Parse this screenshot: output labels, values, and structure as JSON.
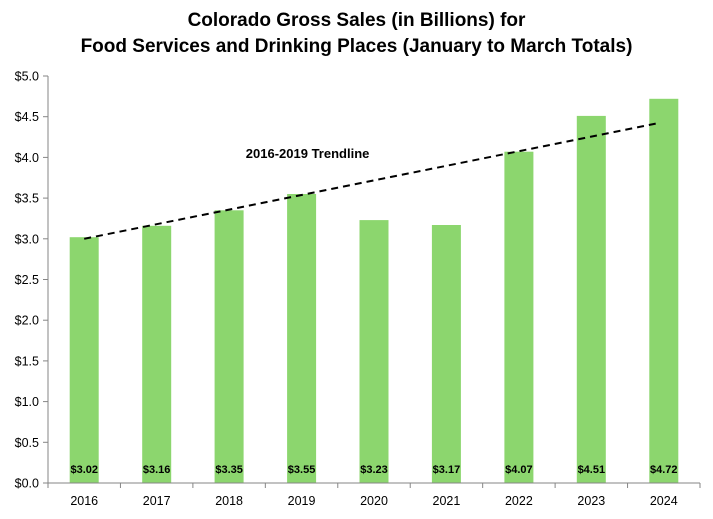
{
  "chart_data": {
    "type": "bar",
    "title": [
      "Colorado Gross Sales (in Billions) for",
      "Food Services and Drinking Places (January to March Totals)"
    ],
    "xlabel": "",
    "ylabel": "",
    "categories": [
      "2016",
      "2017",
      "2018",
      "2019",
      "2020",
      "2021",
      "2022",
      "2023",
      "2024"
    ],
    "values": [
      3.02,
      3.16,
      3.35,
      3.55,
      3.23,
      3.17,
      4.07,
      4.51,
      4.72
    ],
    "data_labels": [
      "$3.02",
      "$3.16",
      "$3.35",
      "$3.55",
      "$3.23",
      "$3.17",
      "$4.07",
      "$4.51",
      "$4.72"
    ],
    "ylim": [
      0,
      5
    ],
    "yticks": [
      0,
      0.5,
      1,
      1.5,
      2,
      2.5,
      3,
      3.5,
      4,
      4.5,
      5
    ],
    "ytick_labels": [
      "$0.0",
      "$0.5",
      "$1.0",
      "$1.5",
      "$2.0",
      "$2.5",
      "$3.0",
      "$3.5",
      "$4.0",
      "$4.5",
      "$5.0"
    ],
    "bar_color": "#8cd66e",
    "grid": false,
    "legend": "none",
    "trendline": {
      "label": "2016-2019 Trendline",
      "style": "dashed",
      "color": "#000000",
      "start": {
        "x": "2016",
        "y": 3.0
      },
      "end": {
        "x": "2024",
        "y": 4.42
      }
    }
  }
}
